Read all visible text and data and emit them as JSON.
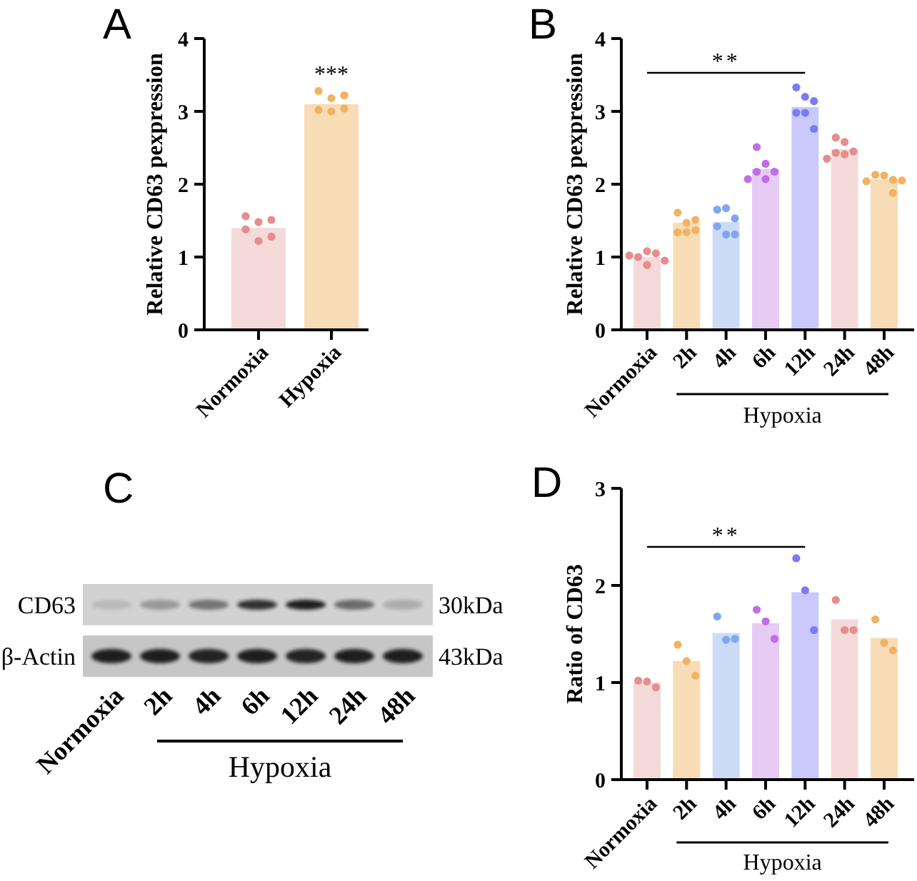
{
  "chart_data": [
    {
      "type": "bar",
      "title": "A",
      "ylabel": "Relative CD63 pexpression",
      "categories": [
        "Normoxia",
        "Hypoxia"
      ],
      "ylim": [
        0,
        4
      ],
      "yticks": [
        0,
        1,
        2,
        3,
        4
      ],
      "marker": "circle",
      "annotations": [
        "***"
      ],
      "series": [
        {
          "type": "bar",
          "values": [
            1.4,
            3.1
          ],
          "colors": [
            "#f5dada",
            "#f7dcb6"
          ]
        },
        {
          "type": "scatter",
          "x": [
            "Normoxia",
            "Normoxia",
            "Normoxia",
            "Normoxia",
            "Normoxia",
            "Normoxia",
            "Hypoxia",
            "Hypoxia",
            "Hypoxia",
            "Hypoxia",
            "Hypoxia",
            "Hypoxia"
          ],
          "values": [
            1.56,
            1.48,
            1.51,
            1.38,
            1.22,
            1.28,
            3.28,
            3.18,
            3.22,
            3.02,
            3.0,
            3.04
          ],
          "colors": [
            "#e88c8c",
            "#e88c8c",
            "#e88c8c",
            "#e88c8c",
            "#e88c8c",
            "#e88c8c",
            "#f2b263",
            "#f2b263",
            "#f2b263",
            "#f2b263",
            "#f2b263",
            "#f2b263"
          ]
        }
      ]
    },
    {
      "type": "bar",
      "title": "B",
      "ylabel": "Relative CD63 pexpression",
      "xlabel": "Hypoxia",
      "categories": [
        "Normoxia",
        "2h",
        "4h",
        "6h",
        "12h",
        "24h",
        "48h"
      ],
      "ylim": [
        0,
        4
      ],
      "yticks": [
        0,
        1,
        2,
        3,
        4
      ],
      "marker": "circle",
      "annotations": [
        "**"
      ],
      "series": [
        {
          "type": "bar",
          "values": [
            1.0,
            1.47,
            1.48,
            2.21,
            3.06,
            2.48,
            2.07
          ],
          "colors": [
            "#f5dada",
            "#f7dcb6",
            "#cddcf6",
            "#e6cbf5",
            "#c9c9fb",
            "#f5dada",
            "#f7dcb6"
          ]
        },
        {
          "type": "scatter",
          "x": [
            "Normoxia",
            "Normoxia",
            "Normoxia",
            "Normoxia",
            "Normoxia",
            "Normoxia",
            "2h",
            "2h",
            "2h",
            "2h",
            "2h",
            "2h",
            "4h",
            "4h",
            "4h",
            "4h",
            "4h",
            "4h",
            "6h",
            "6h",
            "6h",
            "6h",
            "6h",
            "6h",
            "12h",
            "12h",
            "12h",
            "12h",
            "12h",
            "12h",
            "24h",
            "24h",
            "24h",
            "24h",
            "24h",
            "24h",
            "48h",
            "48h",
            "48h",
            "48h",
            "48h",
            "48h"
          ],
          "values": [
            1.0,
            1.08,
            1.05,
            1.02,
            0.89,
            0.95,
            1.61,
            1.47,
            1.51,
            1.34,
            1.34,
            1.37,
            1.65,
            1.67,
            1.53,
            1.42,
            1.31,
            1.31,
            2.51,
            2.28,
            2.17,
            2.17,
            2.07,
            2.07,
            3.33,
            3.2,
            3.14,
            2.98,
            2.98,
            2.76,
            2.64,
            2.58,
            2.45,
            2.43,
            2.41,
            2.35,
            2.13,
            2.12,
            2.06,
            2.04,
            2.05,
            1.88
          ],
          "colors": [
            "#e88c8c",
            "#e88c8c",
            "#e88c8c",
            "#e88c8c",
            "#e88c8c",
            "#e88c8c",
            "#f2b263",
            "#f2b263",
            "#f2b263",
            "#f2b263",
            "#f2b263",
            "#f2b263",
            "#7fa6f2",
            "#7fa6f2",
            "#7fa6f2",
            "#7fa6f2",
            "#7fa6f2",
            "#7fa6f2",
            "#c06ee8",
            "#c06ee8",
            "#c06ee8",
            "#c06ee8",
            "#c06ee8",
            "#c06ee8",
            "#7b7bf2",
            "#7b7bf2",
            "#7b7bf2",
            "#7b7bf2",
            "#7b7bf2",
            "#7b7bf2",
            "#e88c8c",
            "#e88c8c",
            "#e88c8c",
            "#e88c8c",
            "#e88c8c",
            "#e88c8c",
            "#f2b263",
            "#f2b263",
            "#f2b263",
            "#f2b263",
            "#f2b263",
            "#f2b263"
          ]
        }
      ]
    },
    {
      "type": "other",
      "title": "C",
      "categories": [
        "Normoxia",
        "2h",
        "4h",
        "6h",
        "12h",
        "24h",
        "48h"
      ],
      "xlabel": "Hypoxia",
      "y_categories": [
        "CD63",
        "β-Actin"
      ],
      "y2_categories": [
        "30kDa",
        "43kDa"
      ]
    },
    {
      "type": "bar",
      "title": "D",
      "ylabel": "Ratio of CD63",
      "xlabel": "Hypoxia",
      "categories": [
        "Normoxia",
        "2h",
        "4h",
        "6h",
        "12h",
        "24h",
        "48h"
      ],
      "ylim": [
        0,
        3
      ],
      "yticks": [
        0,
        1,
        2,
        3
      ],
      "marker": "circle",
      "annotations": [
        "**"
      ],
      "series": [
        {
          "type": "bar",
          "values": [
            1.0,
            1.22,
            1.51,
            1.61,
            1.93,
            1.65,
            1.46
          ],
          "colors": [
            "#f5dada",
            "#f7dcb6",
            "#cddcf6",
            "#e6cbf5",
            "#c9c9fb",
            "#f5dada",
            "#f7dcb6"
          ]
        },
        {
          "type": "scatter",
          "x": [
            "Normoxia",
            "Normoxia",
            "Normoxia",
            "2h",
            "2h",
            "2h",
            "4h",
            "4h",
            "4h",
            "6h",
            "6h",
            "6h",
            "12h",
            "12h",
            "12h",
            "24h",
            "24h",
            "24h",
            "48h",
            "48h",
            "48h"
          ],
          "values": [
            1.02,
            1.01,
            0.95,
            1.39,
            1.22,
            1.07,
            1.68,
            1.44,
            1.45,
            1.75,
            1.63,
            1.45,
            2.28,
            1.95,
            1.54,
            1.85,
            1.54,
            1.54,
            1.65,
            1.41,
            1.33
          ],
          "colors": [
            "#e88c8c",
            "#e88c8c",
            "#e88c8c",
            "#f2b263",
            "#f2b263",
            "#f2b263",
            "#7fa6f2",
            "#7fa6f2",
            "#7fa6f2",
            "#c06ee8",
            "#c06ee8",
            "#c06ee8",
            "#7b7bf2",
            "#7b7bf2",
            "#7b7bf2",
            "#e88c8c",
            "#e88c8c",
            "#e88c8c",
            "#f2b263",
            "#f2b263",
            "#f2b263"
          ]
        }
      ]
    }
  ]
}
